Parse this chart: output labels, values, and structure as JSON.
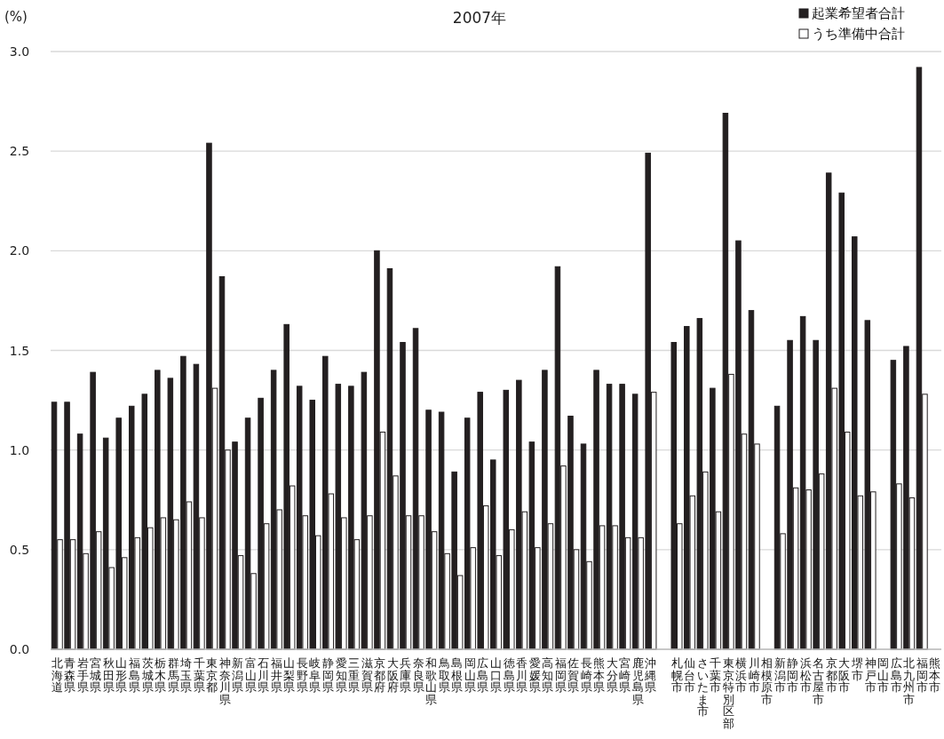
{
  "chart_data": {
    "type": "bar",
    "title": "2007年",
    "ylabel": "(%)",
    "categories": [
      "北海道",
      "青森県",
      "岩手県",
      "宮城県",
      "秋田県",
      "山形県",
      "福島県",
      "茨城県",
      "栃木県",
      "群馬県",
      "埼玉県",
      "千葉県",
      "東京都",
      "神奈川県",
      "新潟県",
      "富山県",
      "石川県",
      "福井県",
      "山梨県",
      "長野県",
      "岐阜県",
      "静岡県",
      "愛知県",
      "三重県",
      "滋賀県",
      "京都府",
      "大阪府",
      "兵庫県",
      "奈良県",
      "和歌山県",
      "鳥取県",
      "島根県",
      "岡山県",
      "広島県",
      "山口県",
      "徳島県",
      "香川県",
      "愛媛県",
      "高知県",
      "福岡県",
      "佐賀県",
      "長崎県",
      "熊本県",
      "大分県",
      "宮崎県",
      "鹿児島県",
      "沖縄県",
      null,
      "札幌市",
      "仙台市",
      "さいたま市",
      "千葉市",
      "東京特別区部",
      "横浜市",
      "川崎市",
      "相模原市",
      "新潟市",
      "静岡市",
      "浜松市",
      "名古屋市",
      "京都市",
      "大阪市",
      "堺市",
      "神戸市",
      "岡山市",
      "広島市",
      "北九州市",
      "福岡市",
      "熊本市"
    ],
    "series": [
      {
        "name": "起業希望者合計",
        "color": "#231f20",
        "values": [
          1.24,
          1.24,
          1.08,
          1.39,
          1.06,
          1.16,
          1.22,
          1.28,
          1.4,
          1.36,
          1.47,
          1.43,
          2.54,
          1.87,
          1.04,
          1.16,
          1.26,
          1.4,
          1.63,
          1.32,
          1.25,
          1.47,
          1.33,
          1.32,
          1.39,
          2.0,
          1.91,
          1.54,
          1.61,
          1.2,
          1.19,
          0.89,
          1.16,
          1.29,
          0.95,
          1.3,
          1.35,
          1.04,
          1.4,
          1.92,
          1.17,
          1.03,
          1.4,
          1.33,
          1.33,
          1.28,
          2.49,
          null,
          1.54,
          1.62,
          1.66,
          1.31,
          2.69,
          2.05,
          1.7,
          null,
          1.22,
          1.55,
          1.67,
          1.55,
          2.39,
          2.29,
          2.07,
          1.65,
          null,
          1.45,
          1.52,
          2.92,
          null
        ]
      },
      {
        "name": "うち準備中合計",
        "color": "#ffffff",
        "values": [
          0.55,
          0.55,
          0.48,
          0.59,
          0.41,
          0.46,
          0.56,
          0.61,
          0.66,
          0.65,
          0.74,
          0.66,
          1.31,
          1.0,
          0.47,
          0.38,
          0.63,
          0.7,
          0.82,
          0.67,
          0.57,
          0.78,
          0.66,
          0.55,
          0.67,
          1.09,
          0.87,
          0.67,
          0.67,
          0.59,
          0.48,
          0.37,
          0.51,
          0.72,
          0.47,
          0.6,
          0.69,
          0.51,
          0.63,
          0.92,
          0.5,
          0.44,
          0.62,
          0.62,
          0.56,
          0.56,
          1.29,
          null,
          0.63,
          0.77,
          0.89,
          0.69,
          1.38,
          1.08,
          1.03,
          null,
          0.58,
          0.81,
          0.8,
          0.88,
          1.31,
          1.09,
          0.77,
          0.79,
          null,
          0.83,
          0.76,
          1.28,
          null
        ]
      }
    ],
    "ylim": [
      0,
      3
    ],
    "yticks": [
      {
        "value": 0,
        "label": "0.0"
      },
      {
        "value": 0.5,
        "label": "0.5"
      },
      {
        "value": 1,
        "label": "1.0"
      },
      {
        "value": 1.5,
        "label": "1.5"
      },
      {
        "value": 2,
        "label": "2.0"
      },
      {
        "value": 2.5,
        "label": "2.5"
      },
      {
        "value": 3,
        "label": "3.0"
      }
    ],
    "grid": "y",
    "legend": "top right"
  }
}
